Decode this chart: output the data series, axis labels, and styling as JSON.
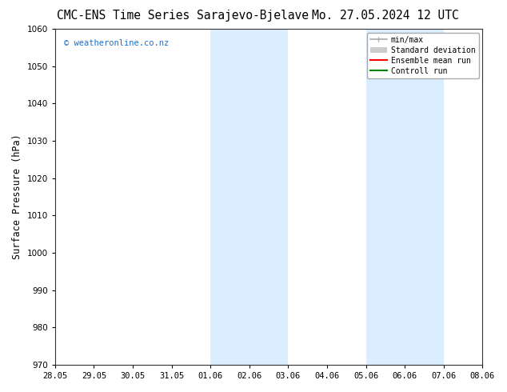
{
  "title_left": "CMC-ENS Time Series Sarajevo-Bjelave",
  "title_right": "Mo. 27.05.2024 12 UTC",
  "ylabel": "Surface Pressure (hPa)",
  "ylim": [
    970,
    1060
  ],
  "yticks": [
    970,
    980,
    990,
    1000,
    1010,
    1020,
    1030,
    1040,
    1050,
    1060
  ],
  "xlabels": [
    "28.05",
    "29.05",
    "30.05",
    "31.05",
    "01.06",
    "02.06",
    "03.06",
    "04.06",
    "05.06",
    "06.06",
    "07.06",
    "08.06"
  ],
  "xvalues": [
    0,
    1,
    2,
    3,
    4,
    5,
    6,
    7,
    8,
    9,
    10,
    11
  ],
  "xlim": [
    0,
    11
  ],
  "shade_regions": [
    {
      "xmin": 4,
      "xmax": 6
    },
    {
      "xmin": 8,
      "xmax": 10
    }
  ],
  "shade_color": "#daeeff",
  "background_color": "#ffffff",
  "watermark": "© weatheronline.co.nz",
  "watermark_color": "#1a6fcc",
  "legend_items": [
    {
      "label": "min/max",
      "color": "#aaaaaa",
      "lw": 1.2
    },
    {
      "label": "Standard deviation",
      "color": "#cccccc",
      "lw": 8
    },
    {
      "label": "Ensemble mean run",
      "color": "#ff0000",
      "lw": 1.5
    },
    {
      "label": "Controll run",
      "color": "#008000",
      "lw": 1.5
    }
  ],
  "title_fontsize": 10.5,
  "tick_fontsize": 7.5,
  "ylabel_fontsize": 8.5,
  "watermark_fontsize": 7.5,
  "legend_fontsize": 7.0
}
